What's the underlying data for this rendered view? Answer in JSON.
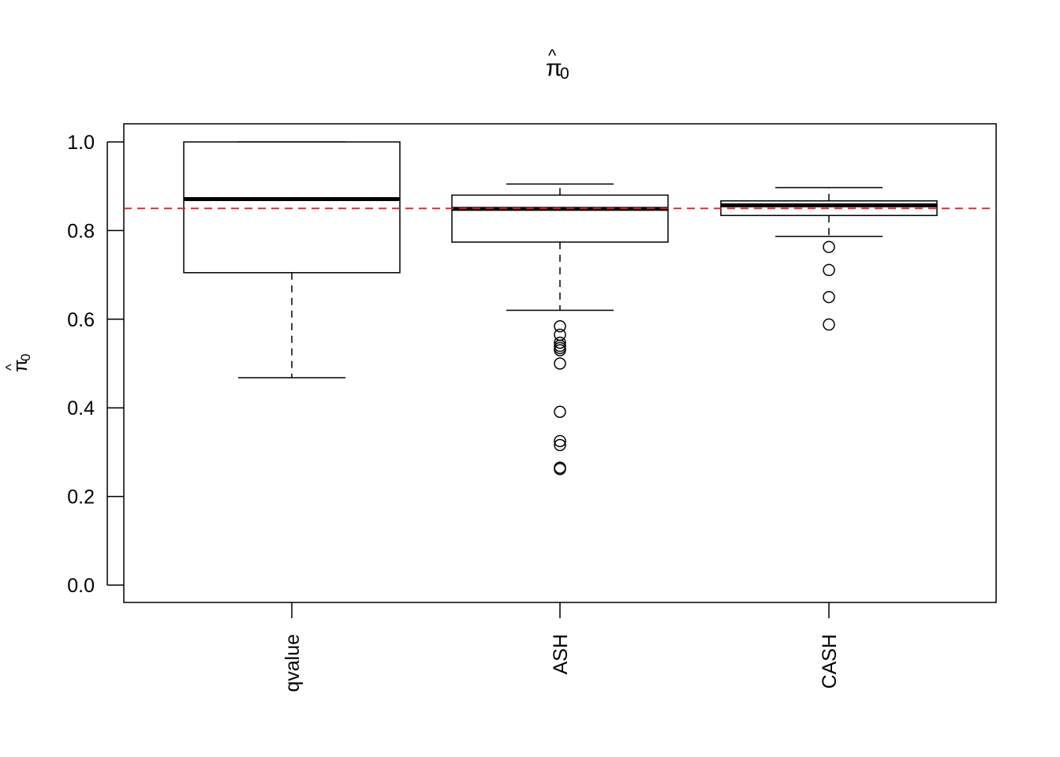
{
  "chart_data": {
    "type": "boxplot",
    "title": "π̂",
    "title_parts": {
      "symbol": "π",
      "hat": "^",
      "subscript": "0"
    },
    "xlabel": "",
    "ylabel": "π̂",
    "ylabel_parts": {
      "symbol": "π",
      "hat": "^",
      "subscript": "0"
    },
    "ylim": [
      -0.04,
      1.04
    ],
    "yticks": [
      0.0,
      0.2,
      0.4,
      0.6,
      0.8,
      1.0
    ],
    "ytick_labels": [
      "0.0",
      "0.2",
      "0.4",
      "0.6",
      "0.8",
      "1.0"
    ],
    "categories": [
      "qvalue",
      "ASH",
      "CASH"
    ],
    "reference_line": {
      "y": 0.85,
      "color": "#dd2222",
      "style": "dashed"
    },
    "grid": false,
    "boxes": [
      {
        "name": "qvalue",
        "whisker_low": 0.468,
        "q1": 0.705,
        "median": 0.871,
        "q3": 1.0,
        "whisker_high": 1.0,
        "outliers": []
      },
      {
        "name": "ASH",
        "whisker_low": 0.62,
        "q1": 0.774,
        "median": 0.849,
        "q3": 0.88,
        "whisker_high": 0.905,
        "outliers": [
          0.584,
          0.565,
          0.547,
          0.54,
          0.535,
          0.53,
          0.5,
          0.391,
          0.325,
          0.316,
          0.265,
          0.262
        ]
      },
      {
        "name": "CASH",
        "whisker_low": 0.787,
        "q1": 0.834,
        "median": 0.857,
        "q3": 0.867,
        "whisker_high": 0.897,
        "outliers": [
          0.763,
          0.711,
          0.65,
          0.588
        ]
      }
    ]
  }
}
